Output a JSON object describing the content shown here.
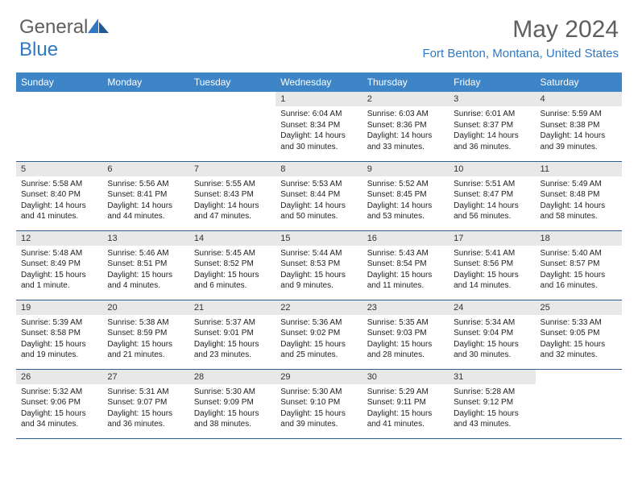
{
  "logo": {
    "text1": "General",
    "text2": "Blue"
  },
  "title": "May 2024",
  "location": "Fort Benton, Montana, United States",
  "colors": {
    "header_bg": "#3d85c6",
    "header_text": "#ffffff",
    "daynum_bg": "#e8e8e8",
    "cell_border": "#2f5d8c",
    "logo_gray": "#5f5f5f",
    "logo_blue": "#2f79c2",
    "location_color": "#2f79c2",
    "background": "#ffffff"
  },
  "days_of_week": [
    "Sunday",
    "Monday",
    "Tuesday",
    "Wednesday",
    "Thursday",
    "Friday",
    "Saturday"
  ],
  "weeks": [
    [
      null,
      null,
      null,
      {
        "n": "1",
        "sr": "6:04 AM",
        "ss": "8:34 PM",
        "dl": "14 hours and 30 minutes."
      },
      {
        "n": "2",
        "sr": "6:03 AM",
        "ss": "8:36 PM",
        "dl": "14 hours and 33 minutes."
      },
      {
        "n": "3",
        "sr": "6:01 AM",
        "ss": "8:37 PM",
        "dl": "14 hours and 36 minutes."
      },
      {
        "n": "4",
        "sr": "5:59 AM",
        "ss": "8:38 PM",
        "dl": "14 hours and 39 minutes."
      }
    ],
    [
      {
        "n": "5",
        "sr": "5:58 AM",
        "ss": "8:40 PM",
        "dl": "14 hours and 41 minutes."
      },
      {
        "n": "6",
        "sr": "5:56 AM",
        "ss": "8:41 PM",
        "dl": "14 hours and 44 minutes."
      },
      {
        "n": "7",
        "sr": "5:55 AM",
        "ss": "8:43 PM",
        "dl": "14 hours and 47 minutes."
      },
      {
        "n": "8",
        "sr": "5:53 AM",
        "ss": "8:44 PM",
        "dl": "14 hours and 50 minutes."
      },
      {
        "n": "9",
        "sr": "5:52 AM",
        "ss": "8:45 PM",
        "dl": "14 hours and 53 minutes."
      },
      {
        "n": "10",
        "sr": "5:51 AM",
        "ss": "8:47 PM",
        "dl": "14 hours and 56 minutes."
      },
      {
        "n": "11",
        "sr": "5:49 AM",
        "ss": "8:48 PM",
        "dl": "14 hours and 58 minutes."
      }
    ],
    [
      {
        "n": "12",
        "sr": "5:48 AM",
        "ss": "8:49 PM",
        "dl": "15 hours and 1 minute."
      },
      {
        "n": "13",
        "sr": "5:46 AM",
        "ss": "8:51 PM",
        "dl": "15 hours and 4 minutes."
      },
      {
        "n": "14",
        "sr": "5:45 AM",
        "ss": "8:52 PM",
        "dl": "15 hours and 6 minutes."
      },
      {
        "n": "15",
        "sr": "5:44 AM",
        "ss": "8:53 PM",
        "dl": "15 hours and 9 minutes."
      },
      {
        "n": "16",
        "sr": "5:43 AM",
        "ss": "8:54 PM",
        "dl": "15 hours and 11 minutes."
      },
      {
        "n": "17",
        "sr": "5:41 AM",
        "ss": "8:56 PM",
        "dl": "15 hours and 14 minutes."
      },
      {
        "n": "18",
        "sr": "5:40 AM",
        "ss": "8:57 PM",
        "dl": "15 hours and 16 minutes."
      }
    ],
    [
      {
        "n": "19",
        "sr": "5:39 AM",
        "ss": "8:58 PM",
        "dl": "15 hours and 19 minutes."
      },
      {
        "n": "20",
        "sr": "5:38 AM",
        "ss": "8:59 PM",
        "dl": "15 hours and 21 minutes."
      },
      {
        "n": "21",
        "sr": "5:37 AM",
        "ss": "9:01 PM",
        "dl": "15 hours and 23 minutes."
      },
      {
        "n": "22",
        "sr": "5:36 AM",
        "ss": "9:02 PM",
        "dl": "15 hours and 25 minutes."
      },
      {
        "n": "23",
        "sr": "5:35 AM",
        "ss": "9:03 PM",
        "dl": "15 hours and 28 minutes."
      },
      {
        "n": "24",
        "sr": "5:34 AM",
        "ss": "9:04 PM",
        "dl": "15 hours and 30 minutes."
      },
      {
        "n": "25",
        "sr": "5:33 AM",
        "ss": "9:05 PM",
        "dl": "15 hours and 32 minutes."
      }
    ],
    [
      {
        "n": "26",
        "sr": "5:32 AM",
        "ss": "9:06 PM",
        "dl": "15 hours and 34 minutes."
      },
      {
        "n": "27",
        "sr": "5:31 AM",
        "ss": "9:07 PM",
        "dl": "15 hours and 36 minutes."
      },
      {
        "n": "28",
        "sr": "5:30 AM",
        "ss": "9:09 PM",
        "dl": "15 hours and 38 minutes."
      },
      {
        "n": "29",
        "sr": "5:30 AM",
        "ss": "9:10 PM",
        "dl": "15 hours and 39 minutes."
      },
      {
        "n": "30",
        "sr": "5:29 AM",
        "ss": "9:11 PM",
        "dl": "15 hours and 41 minutes."
      },
      {
        "n": "31",
        "sr": "5:28 AM",
        "ss": "9:12 PM",
        "dl": "15 hours and 43 minutes."
      },
      null
    ]
  ],
  "labels": {
    "sunrise": "Sunrise:",
    "sunset": "Sunset:",
    "daylight": "Daylight:"
  }
}
